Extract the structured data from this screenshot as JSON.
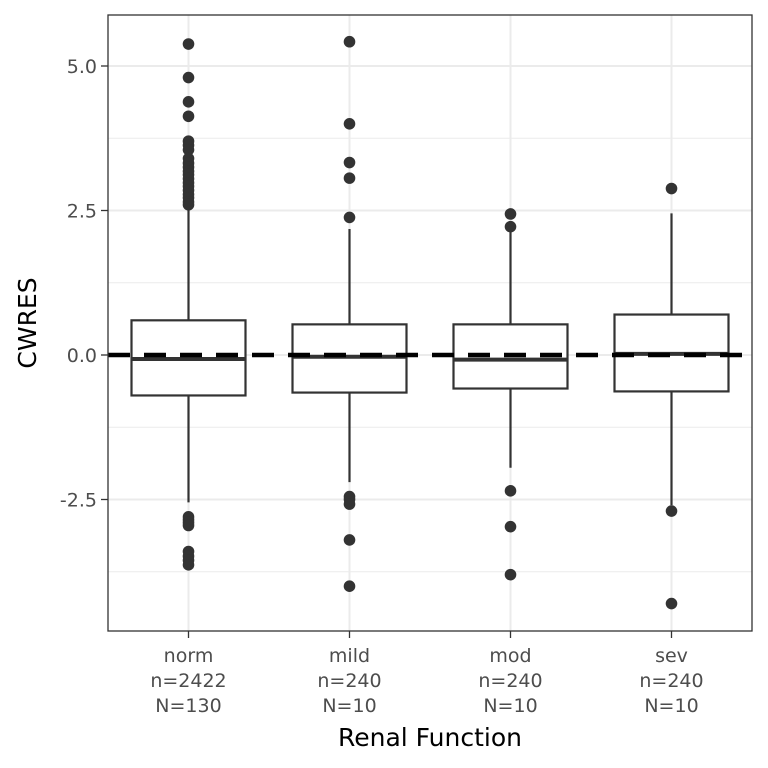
{
  "chart_data": {
    "type": "boxplot",
    "xlabel": "Renal Function",
    "ylabel": "CWRES",
    "ylim": [
      -4.8,
      6.0
    ],
    "y_ticks": [
      {
        "value": -2.5,
        "label": "-2.5"
      },
      {
        "value": 0.0,
        "label": "0.0"
      },
      {
        "value": 2.5,
        "label": "2.5"
      },
      {
        "value": 5.0,
        "label": "5.0"
      }
    ],
    "y_minor_ticks": [
      -3.75,
      -1.25,
      1.25,
      3.75
    ],
    "grid": true,
    "reference_line": {
      "y": 0,
      "style": "dashed"
    },
    "categories": [
      {
        "name": "norm",
        "n_label": "n=2422",
        "N_label": "N=130",
        "q1": -0.7,
        "median": -0.07,
        "q3": 0.6,
        "whisker_low": -2.55,
        "whisker_high": 2.58,
        "outliers": [
          5.38,
          4.8,
          4.38,
          4.13,
          3.7,
          3.63,
          3.55,
          3.4,
          3.32,
          3.25,
          3.18,
          3.12,
          3.05,
          2.98,
          2.92,
          2.85,
          2.78,
          2.72,
          2.65,
          2.6,
          -2.8,
          -2.85,
          -2.9,
          -2.95,
          -3.4,
          -3.48,
          -3.55,
          -3.63
        ]
      },
      {
        "name": "mild",
        "n_label": "n=240",
        "N_label": "N=10",
        "q1": -0.65,
        "median": -0.03,
        "q3": 0.53,
        "whisker_low": -2.2,
        "whisker_high": 2.18,
        "outliers": [
          5.42,
          4.0,
          3.33,
          3.06,
          2.38,
          -2.45,
          -2.5,
          -2.58,
          -3.2,
          -4.0
        ]
      },
      {
        "name": "mod",
        "n_label": "n=240",
        "N_label": "N=10",
        "q1": -0.58,
        "median": -0.08,
        "q3": 0.53,
        "whisker_low": -1.95,
        "whisker_high": 2.18,
        "outliers": [
          2.44,
          2.22,
          -2.35,
          -2.97,
          -3.8
        ]
      },
      {
        "name": "sev",
        "n_label": "n=240",
        "N_label": "N=10",
        "q1": -0.63,
        "median": 0.02,
        "q3": 0.7,
        "whisker_low": -2.6,
        "whisker_high": 2.45,
        "outliers": [
          2.88,
          -2.7,
          -4.3
        ]
      }
    ]
  }
}
